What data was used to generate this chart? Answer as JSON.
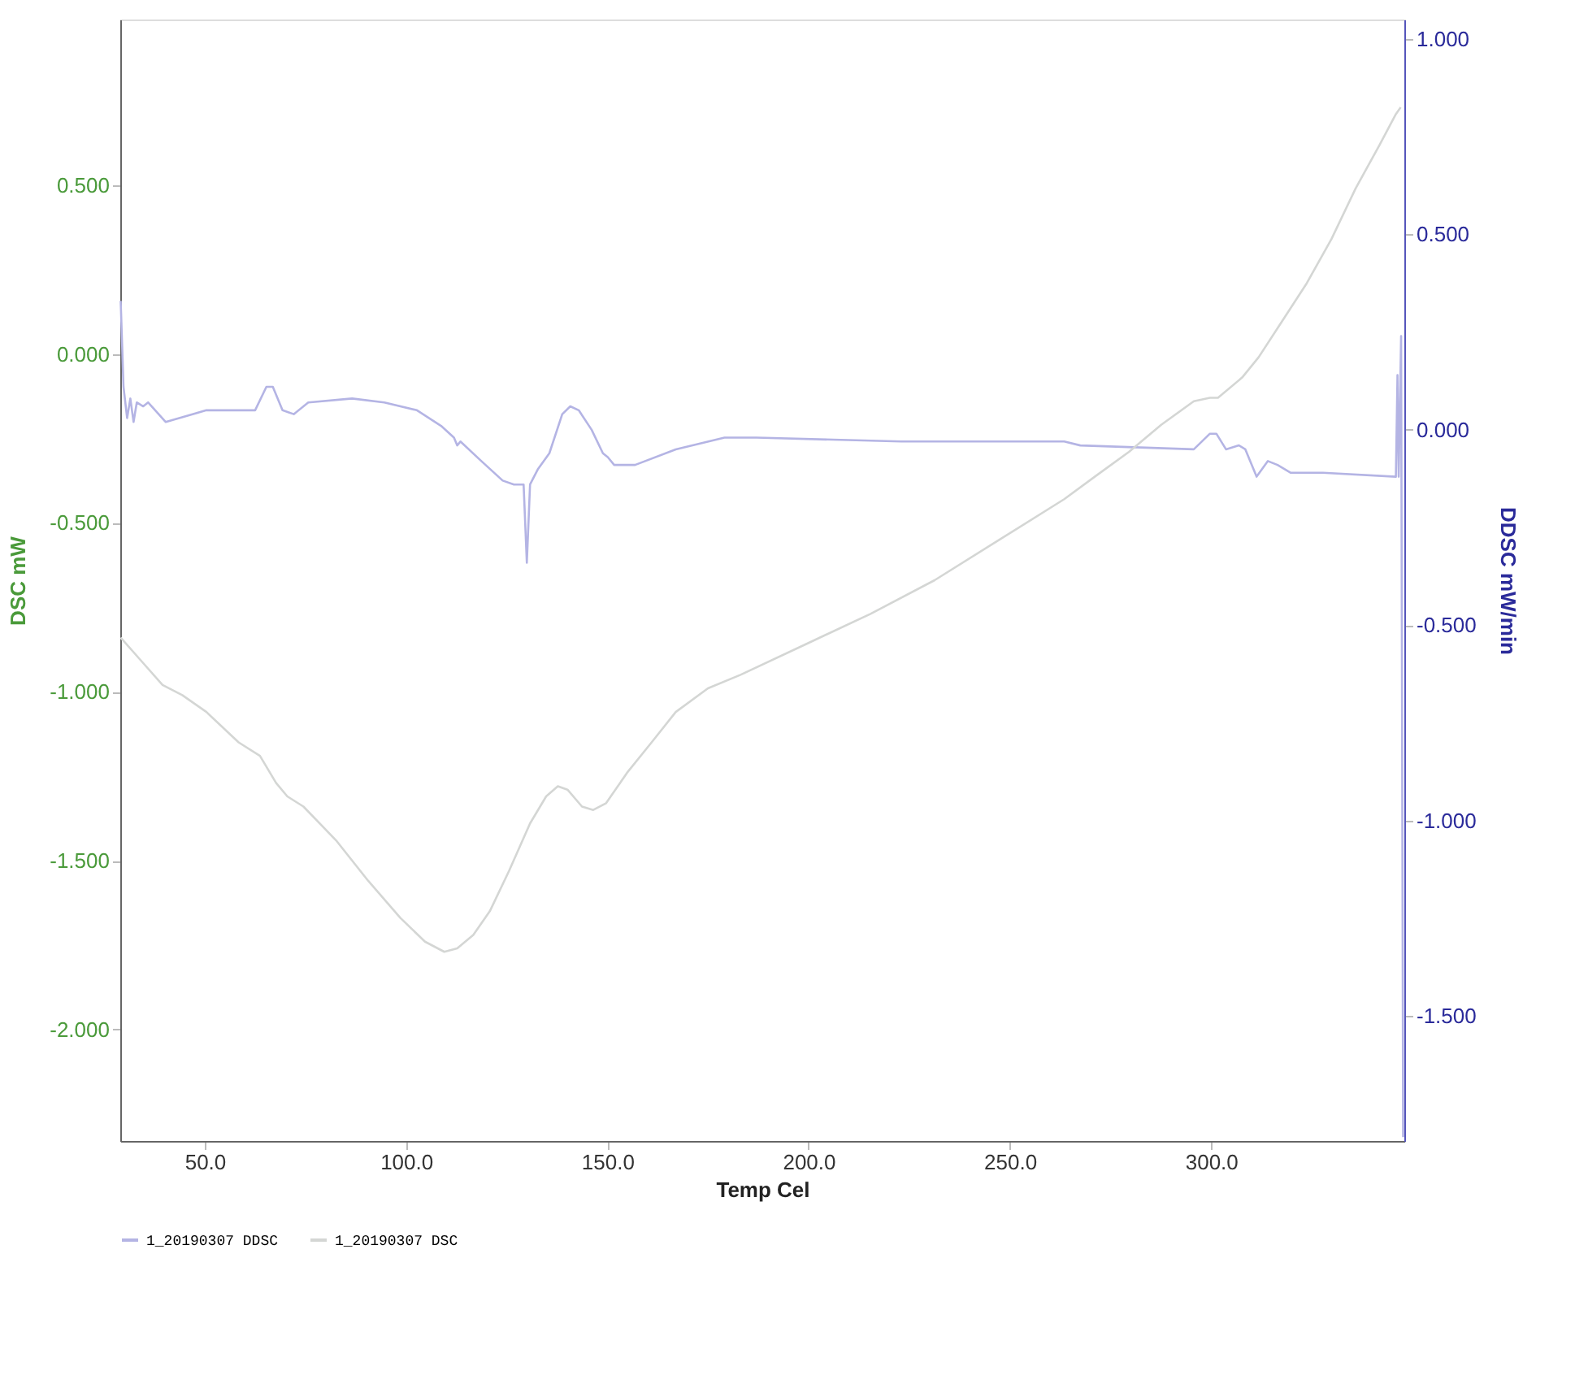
{
  "chart_data": {
    "type": "line",
    "xlabel": "Temp Cel",
    "ylabel": "DSC mW",
    "y2label": "DDSC mW/min",
    "xlim": [
      29,
      348
    ],
    "xticks": [
      {
        "value": 50,
        "label": "50.0"
      },
      {
        "value": 100,
        "label": "100.0"
      },
      {
        "value": 150,
        "label": "150.0"
      },
      {
        "value": 200,
        "label": "200.0"
      },
      {
        "value": 250,
        "label": "250.0"
      },
      {
        "value": 300,
        "label": "300.0"
      }
    ],
    "ylim": [
      -2.33,
      0.99
    ],
    "yticks": [
      {
        "value": -2,
        "label": "-2.000"
      },
      {
        "value": -1.5,
        "label": "-1.500"
      },
      {
        "value": -1,
        "label": "-1.000"
      },
      {
        "value": -0.5,
        "label": "-0.500"
      },
      {
        "value": 0,
        "label": "0.000"
      },
      {
        "value": 0.5,
        "label": "0.500"
      }
    ],
    "y2lim": [
      -1.82,
      1.05
    ],
    "y2ticks": [
      {
        "value": -1.5,
        "label": "-1.500"
      },
      {
        "value": -1,
        "label": "-1.000"
      },
      {
        "value": -0.5,
        "label": "-0.500"
      },
      {
        "value": 0,
        "label": "0.000"
      },
      {
        "value": 0.5,
        "label": "0.500"
      },
      {
        "value": 1,
        "label": "1.000"
      }
    ],
    "grid": false,
    "legend": "bottom",
    "marker": "none",
    "line_style": "solid",
    "series": [
      {
        "name": "1_20190307  DDSC",
        "color": "#b4b4e4",
        "axis": "y2",
        "x": [
          29.1,
          29.8,
          30.7,
          31.5,
          32.3,
          33.1,
          34.7,
          35.9,
          40.3,
          50.4,
          62.5,
          65.3,
          66.9,
          69.3,
          72.1,
          75.7,
          86.6,
          94.6,
          102.7,
          108.7,
          111.9,
          112.7,
          113.5,
          118.7,
          124.0,
          126.8,
          129.2,
          130.0,
          130.8,
          132.8,
          135.6,
          138.8,
          140.8,
          142.9,
          146.1,
          148.9,
          150.1,
          151.7,
          156.9,
          167.0,
          179.1,
          187.1,
          223.0,
          263.5,
          267.5,
          295.7,
          299.7,
          301.3,
          303.7,
          306.9,
          308.5,
          311.3,
          314.1,
          316.5,
          319.8,
          327.8,
          345.9,
          346.3,
          346.6,
          347.2,
          347.7
        ],
        "values": [
          0.33,
          0.11,
          0.03,
          0.08,
          0.02,
          0.07,
          0.06,
          0.07,
          0.02,
          0.05,
          0.05,
          0.11,
          0.11,
          0.05,
          0.04,
          0.07,
          0.08,
          0.07,
          0.05,
          0.01,
          -0.02,
          -0.04,
          -0.03,
          -0.08,
          -0.13,
          -0.14,
          -0.14,
          -0.34,
          -0.14,
          -0.1,
          -0.06,
          0.04,
          0.06,
          0.05,
          0.0,
          -0.06,
          -0.07,
          -0.09,
          -0.09,
          -0.05,
          -0.02,
          -0.02,
          -0.03,
          -0.03,
          -0.04,
          -0.05,
          -0.01,
          -0.01,
          -0.05,
          -0.04,
          -0.05,
          -0.12,
          -0.08,
          -0.09,
          -0.11,
          -0.11,
          -0.12,
          0.14,
          -0.12,
          0.24,
          -1.81
        ]
      },
      {
        "name": "1_20190307  DSC",
        "color": "#d4d6d4",
        "x": [
          29.1,
          34.3,
          39.5,
          44.4,
          50.4,
          58.4,
          63.7,
          67.7,
          70.5,
          74.5,
          82.6,
          90.6,
          98.6,
          104.7,
          109.5,
          112.7,
          116.7,
          120.8,
          125.6,
          130.8,
          134.8,
          137.7,
          140.1,
          143.7,
          146.5,
          149.7,
          154.9,
          161.0,
          167.0,
          175.0,
          183.1,
          199.2,
          215.3,
          231.3,
          247.4,
          263.5,
          271.5,
          279.6,
          287.6,
          295.7,
          299.7,
          301.7,
          307.7,
          311.8,
          317.8,
          323.8,
          329.9,
          335.9,
          341.9,
          345.9,
          347.1
        ],
        "values": [
          -0.84,
          -0.91,
          -0.98,
          -1.01,
          -1.06,
          -1.15,
          -1.19,
          -1.27,
          -1.31,
          -1.34,
          -1.44,
          -1.56,
          -1.67,
          -1.74,
          -1.77,
          -1.76,
          -1.72,
          -1.65,
          -1.53,
          -1.39,
          -1.31,
          -1.28,
          -1.29,
          -1.34,
          -1.35,
          -1.33,
          -1.24,
          -1.15,
          -1.06,
          -0.99,
          -0.95,
          -0.86,
          -0.77,
          -0.67,
          -0.55,
          -0.43,
          -0.36,
          -0.29,
          -0.21,
          -0.14,
          -0.13,
          -0.13,
          -0.07,
          -0.01,
          0.1,
          0.21,
          0.34,
          0.49,
          0.62,
          0.71,
          0.73
        ]
      }
    ]
  }
}
